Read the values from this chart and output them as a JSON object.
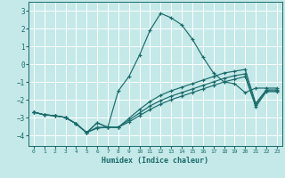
{
  "xlabel": "Humidex (Indice chaleur)",
  "xlim": [
    -0.5,
    23.5
  ],
  "ylim": [
    -4.6,
    3.5
  ],
  "yticks": [
    -4,
    -3,
    -2,
    -1,
    0,
    1,
    2,
    3
  ],
  "xticks": [
    0,
    1,
    2,
    3,
    4,
    5,
    6,
    7,
    8,
    9,
    10,
    11,
    12,
    13,
    14,
    15,
    16,
    17,
    18,
    19,
    20,
    21,
    22,
    23
  ],
  "bg_color": "#c5e8e8",
  "grid_color": "#ffffff",
  "line_color": "#1a6b6b",
  "lines": [
    {
      "x": [
        0,
        1,
        2,
        3,
        4,
        5,
        6,
        7,
        8,
        9,
        10,
        11,
        12,
        13,
        14,
        15,
        16,
        17,
        18,
        19,
        20,
        21,
        22,
        23
      ],
      "y": [
        -2.7,
        -2.85,
        -2.9,
        -3.0,
        -3.35,
        -3.85,
        -3.3,
        -3.55,
        -1.5,
        -0.7,
        0.5,
        1.9,
        2.85,
        2.6,
        2.2,
        1.4,
        0.4,
        -0.5,
        -1.0,
        -1.1,
        -1.6,
        -1.35,
        -1.35,
        -1.35
      ]
    },
    {
      "x": [
        0,
        1,
        2,
        3,
        4,
        5,
        6,
        7,
        8,
        9,
        10,
        11,
        12,
        13,
        14,
        15,
        16,
        17,
        18,
        19,
        20,
        21,
        22,
        23
      ],
      "y": [
        -2.7,
        -2.85,
        -2.9,
        -3.0,
        -3.35,
        -3.85,
        -3.3,
        -3.55,
        -3.55,
        -3.05,
        -2.55,
        -2.1,
        -1.75,
        -1.5,
        -1.3,
        -1.1,
        -0.9,
        -0.7,
        -0.5,
        -0.4,
        -0.3,
        -2.2,
        -1.45,
        -1.45
      ]
    },
    {
      "x": [
        0,
        1,
        2,
        3,
        4,
        5,
        6,
        7,
        8,
        9,
        10,
        11,
        12,
        13,
        14,
        15,
        16,
        17,
        18,
        19,
        20,
        21,
        22,
        23
      ],
      "y": [
        -2.7,
        -2.85,
        -2.9,
        -3.0,
        -3.35,
        -3.85,
        -3.55,
        -3.55,
        -3.55,
        -3.15,
        -2.75,
        -2.35,
        -2.05,
        -1.8,
        -1.6,
        -1.4,
        -1.2,
        -1.0,
        -0.8,
        -0.65,
        -0.55,
        -2.3,
        -1.5,
        -1.5
      ]
    },
    {
      "x": [
        0,
        1,
        2,
        3,
        4,
        5,
        6,
        7,
        8,
        9,
        10,
        11,
        12,
        13,
        14,
        15,
        16,
        17,
        18,
        19,
        20,
        21,
        22,
        23
      ],
      "y": [
        -2.7,
        -2.85,
        -2.9,
        -3.0,
        -3.35,
        -3.85,
        -3.6,
        -3.55,
        -3.55,
        -3.25,
        -2.9,
        -2.55,
        -2.25,
        -2.0,
        -1.8,
        -1.6,
        -1.4,
        -1.2,
        -1.0,
        -0.85,
        -0.7,
        -2.4,
        -1.55,
        -1.55
      ]
    }
  ]
}
